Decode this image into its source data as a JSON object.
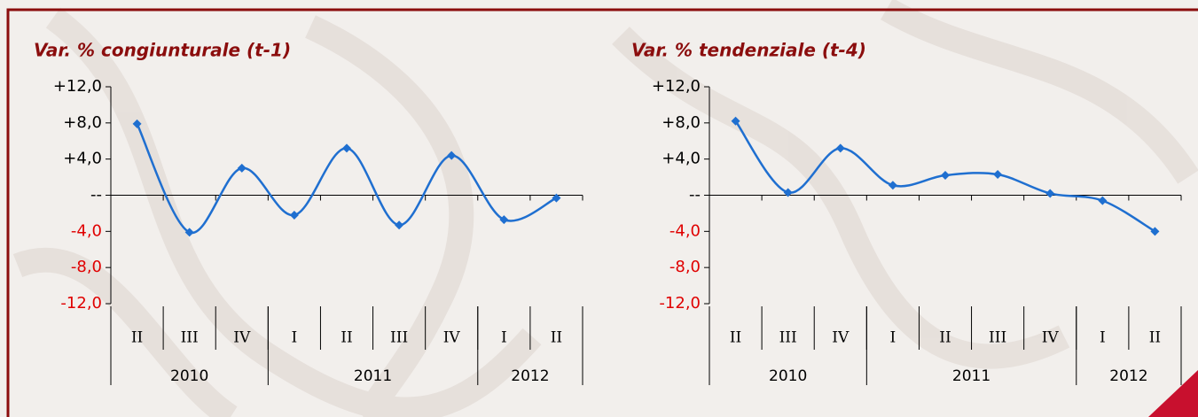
{
  "chart_data": [
    {
      "type": "line",
      "title": "Var. % congiunturale (t-1)",
      "categories": [
        "II",
        "III",
        "IV",
        "I",
        "II",
        "III",
        "IV",
        "I",
        "II"
      ],
      "x_groups": [
        {
          "name": "2010",
          "count": 3
        },
        {
          "name": "2011",
          "count": 4
        },
        {
          "name": "2012",
          "count": 2
        }
      ],
      "series": [
        {
          "color": "#1f6fd0",
          "values": [
            7.9,
            -4.1,
            3.0,
            -2.2,
            5.2,
            -3.3,
            4.4,
            -2.7,
            -0.3
          ]
        }
      ],
      "ylim": [
        -12,
        12
      ],
      "yticks": [
        {
          "value": 12,
          "label": "+12,0"
        },
        {
          "value": 8,
          "label": "+8,0"
        },
        {
          "value": 4,
          "label": "+4,0"
        },
        {
          "value": 0,
          "label": "--"
        },
        {
          "value": -4,
          "label": "-4,0"
        },
        {
          "value": -8,
          "label": "-8,0"
        },
        {
          "value": -12,
          "label": "-12,0"
        }
      ],
      "negative_label_color": "#e00000"
    },
    {
      "type": "line",
      "title": "Var. % tendenziale (t-4)",
      "categories": [
        "II",
        "III",
        "IV",
        "I",
        "II",
        "III",
        "IV",
        "I",
        "II"
      ],
      "x_groups": [
        {
          "name": "2010",
          "count": 3
        },
        {
          "name": "2011",
          "count": 4
        },
        {
          "name": "2012",
          "count": 2
        }
      ],
      "series": [
        {
          "color": "#1f6fd0",
          "values": [
            8.2,
            0.3,
            5.2,
            1.1,
            2.2,
            2.3,
            0.2,
            -0.6,
            -4.0
          ]
        }
      ],
      "ylim": [
        -12,
        12
      ],
      "yticks": [
        {
          "value": 12,
          "label": "+12,0"
        },
        {
          "value": 8,
          "label": "+8,0"
        },
        {
          "value": 4,
          "label": "+4,0"
        },
        {
          "value": 0,
          "label": "--"
        },
        {
          "value": -4,
          "label": "-4,0"
        },
        {
          "value": -8,
          "label": "-8,0"
        },
        {
          "value": -12,
          "label": "-12,0"
        }
      ],
      "negative_label_color": "#e00000"
    }
  ]
}
